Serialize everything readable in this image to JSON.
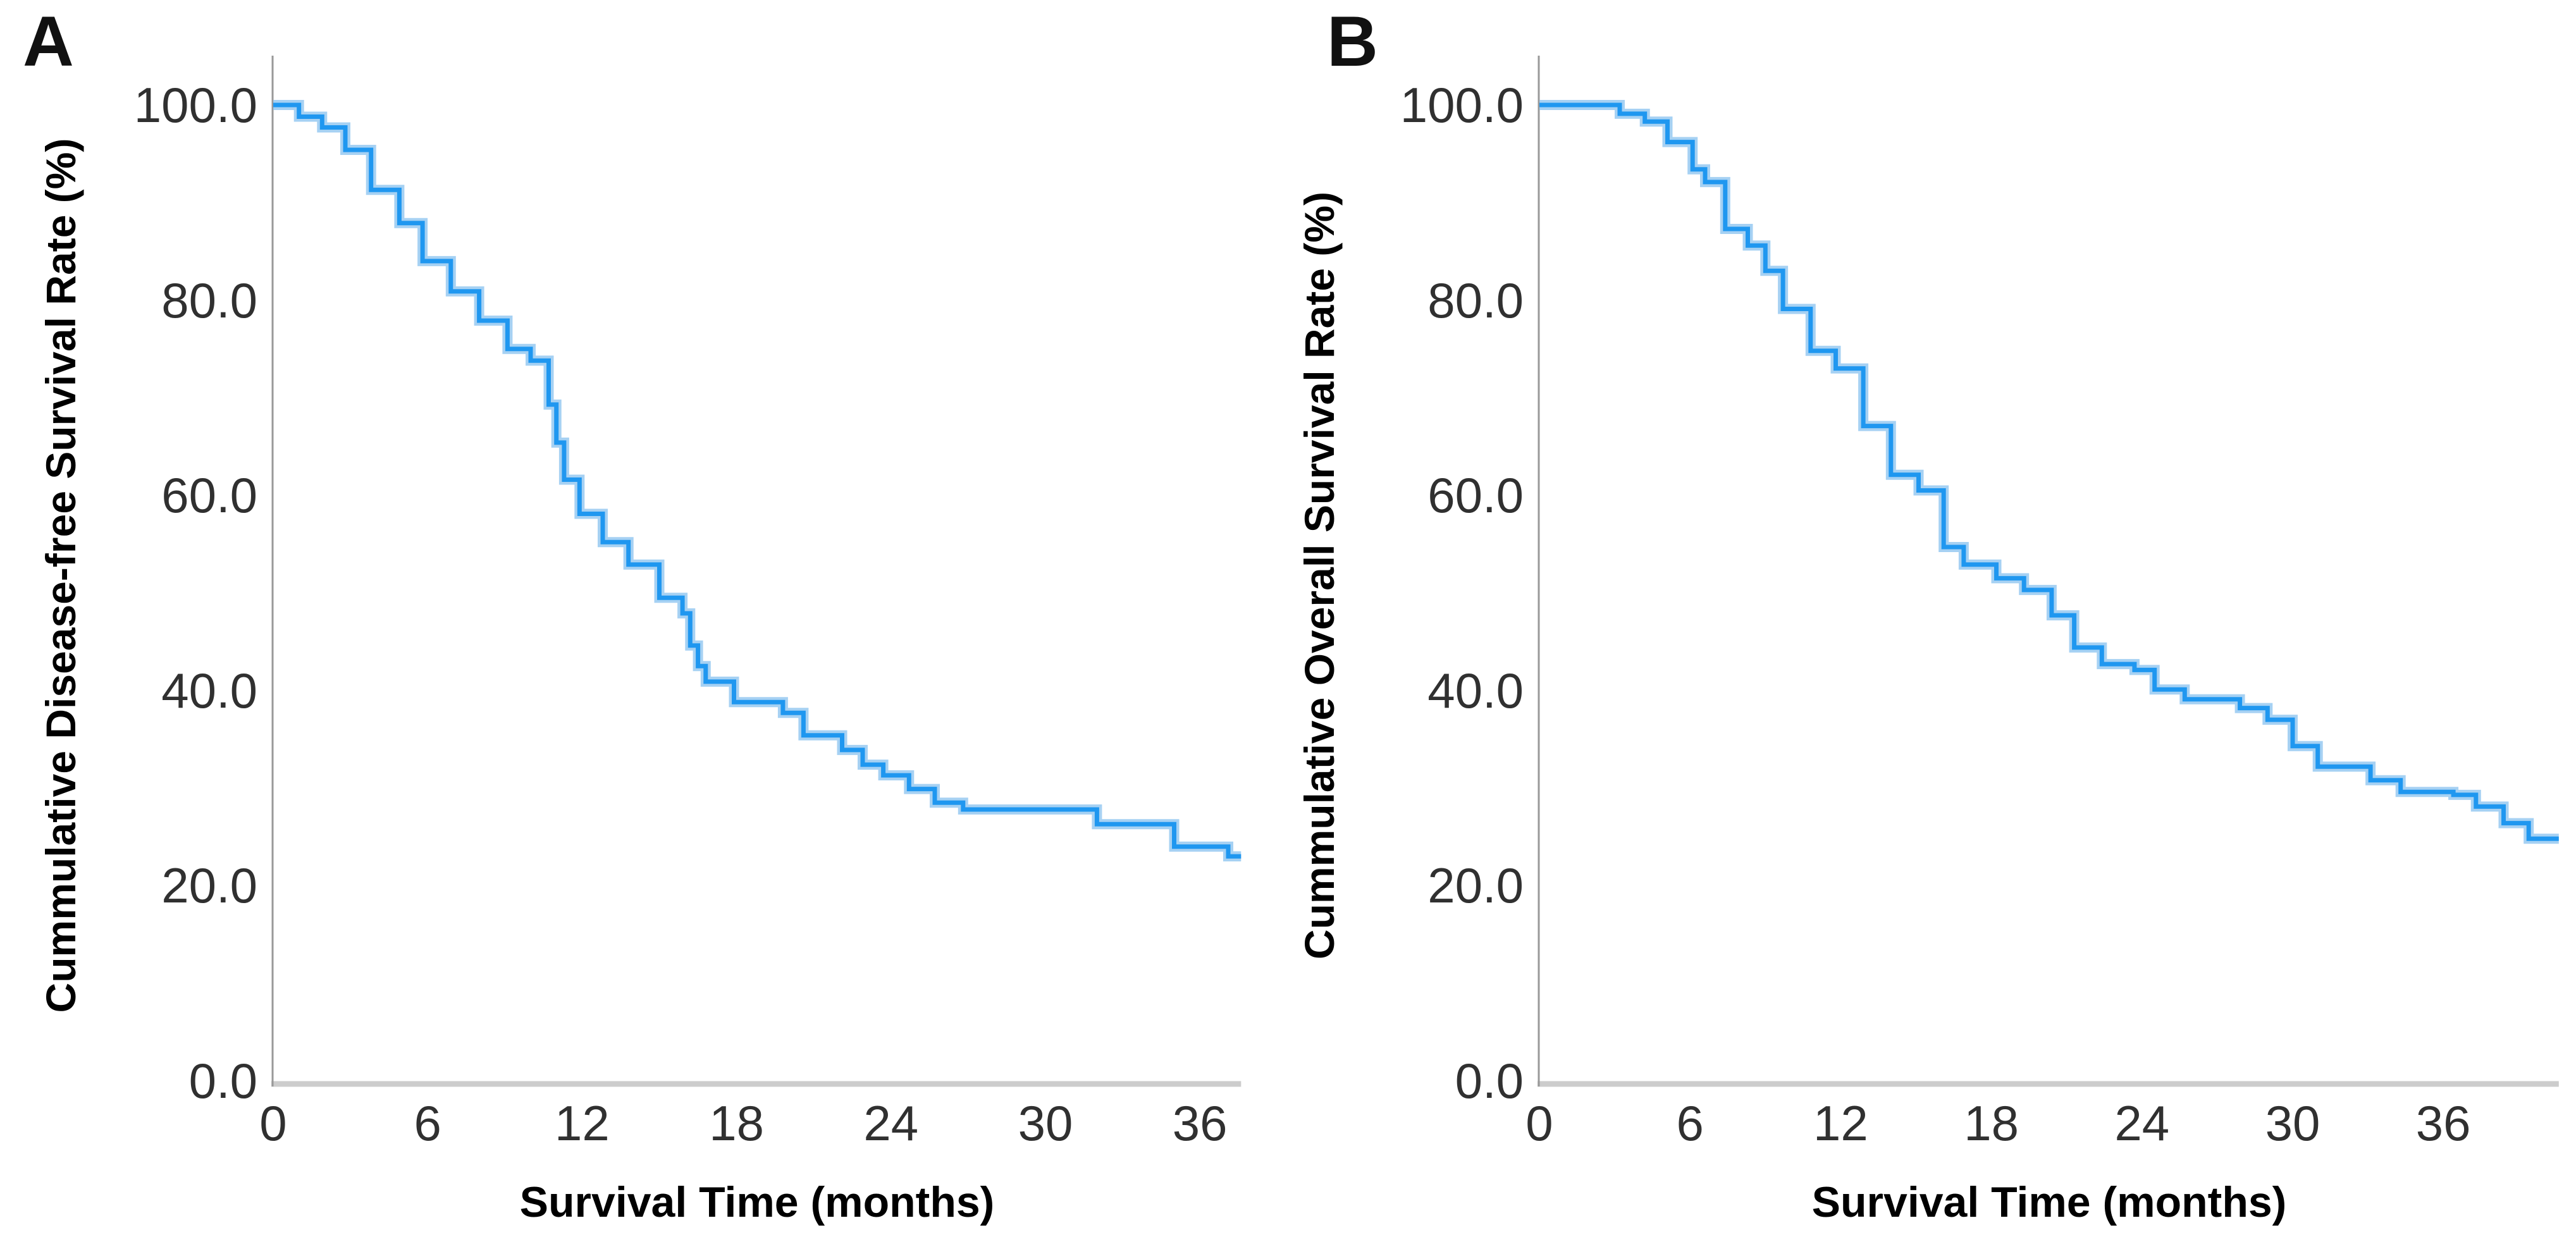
{
  "figure": {
    "background": "#FFFFFF",
    "colors": {
      "curve": "#1F97F0",
      "curve_halo": "#90C5F0",
      "x_axis_line": "#CCCCCC",
      "y_axis_line": "#999999",
      "tick_text": "#303030",
      "title_text": "#000000"
    }
  },
  "chart_data": [
    {
      "type": "line",
      "chart_style": "kaplan-meier-step",
      "panel_label": "A",
      "title": "",
      "xlabel": "Survival Time (months)",
      "ylabel": "Cummulative Disease-free Survival Rate (%)",
      "xlim": [
        0,
        37.6
      ],
      "ylim": [
        0.0,
        100.0
      ],
      "x_ticks": [
        0,
        6,
        12,
        18,
        24,
        30,
        36
      ],
      "y_ticks": [
        0,
        20,
        40,
        60,
        80,
        100
      ],
      "y_tick_labels": [
        "0.0",
        "20.0",
        "40.0",
        "60.0",
        "80.0",
        "100.0"
      ],
      "grid": false,
      "legend": "none",
      "line_color": "#1F97F0",
      "series": [
        {
          "name": "Cumulative disease-free survival rate",
          "x": [
            0,
            1.0,
            1.9,
            2.8,
            3.8,
            4.9,
            5.8,
            6.9,
            8.0,
            9.1,
            10.0,
            10.7,
            11.0,
            11.3,
            11.9,
            12.8,
            13.8,
            15.0,
            15.9,
            16.2,
            16.5,
            16.8,
            17.9,
            19.8,
            20.6,
            22.1,
            22.9,
            23.7,
            24.7,
            25.7,
            26.8,
            32.0,
            35.0,
            37.1
          ],
          "y": [
            100,
            98.8,
            97.7,
            95.4,
            91.3,
            87.9,
            84.0,
            80.9,
            77.9,
            75.0,
            73.8,
            69.3,
            65.4,
            61.6,
            58.1,
            55.2,
            52.9,
            49.5,
            47.9,
            44.6,
            42.5,
            40.9,
            38.8,
            37.7,
            35.4,
            33.9,
            32.4,
            31.3,
            29.9,
            28.5,
            27.8,
            26.3,
            24.0,
            23.0
          ],
          "end_x": 37.6
        }
      ]
    },
    {
      "type": "line",
      "chart_style": "kaplan-meier-step",
      "panel_label": "B",
      "title": "",
      "xlabel": "Survival Time (months)",
      "ylabel": "Cummulative Overall Survival Rate (%)",
      "xlim": [
        0,
        40.6
      ],
      "ylim": [
        0.0,
        100.0
      ],
      "x_ticks": [
        0,
        6,
        12,
        18,
        24,
        30,
        36
      ],
      "y_ticks": [
        0,
        20,
        40,
        60,
        80,
        100
      ],
      "y_tick_labels": [
        "0.0",
        "20.0",
        "40.0",
        "60.0",
        "80.0",
        "100.0"
      ],
      "grid": false,
      "legend": "none",
      "line_color": "#1F97F0",
      "series": [
        {
          "name": "Cumulative overall survival rate",
          "x": [
            0,
            3.2,
            4.2,
            5.1,
            6.1,
            6.6,
            7.4,
            8.3,
            9.0,
            9.7,
            10.8,
            11.8,
            12.9,
            14.0,
            15.1,
            16.1,
            16.9,
            18.2,
            19.3,
            20.4,
            21.3,
            22.4,
            23.7,
            24.5,
            25.7,
            27.9,
            29.0,
            30.0,
            31.0,
            33.1,
            34.3,
            36.4,
            37.3,
            38.4,
            39.4
          ],
          "y": [
            100,
            99.1,
            98.3,
            96.2,
            93.4,
            92.1,
            87.3,
            85.6,
            83.0,
            79.1,
            74.8,
            73.0,
            67.1,
            62.1,
            60.5,
            54.7,
            52.9,
            51.5,
            50.3,
            47.7,
            44.4,
            42.7,
            42.1,
            40.1,
            39.1,
            38.2,
            37.0,
            34.3,
            32.2,
            30.8,
            29.6,
            29.3,
            28.1,
            26.4,
            24.8
          ],
          "end_x": 40.6
        }
      ]
    }
  ]
}
